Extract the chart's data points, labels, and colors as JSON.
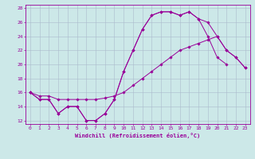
{
  "xlabel": "Windchill (Refroidissement éolien,°C)",
  "color": "#990099",
  "bg_color": "#cce8e8",
  "grid_color": "#aabbcc",
  "xlim": [
    -0.5,
    23.5
  ],
  "ylim": [
    11.5,
    28.5
  ],
  "yticks": [
    12,
    14,
    16,
    18,
    20,
    22,
    24,
    26,
    28
  ],
  "xticks": [
    0,
    1,
    2,
    3,
    4,
    5,
    6,
    7,
    8,
    9,
    10,
    11,
    12,
    13,
    14,
    15,
    16,
    17,
    18,
    19,
    20,
    21,
    22,
    23
  ],
  "series_a_x": [
    0,
    1,
    2,
    3,
    4,
    5,
    6,
    7,
    8,
    9,
    10,
    11,
    12,
    13,
    14,
    15,
    16,
    17,
    18,
    19,
    20,
    21
  ],
  "series_a_y": [
    16,
    15,
    15,
    13,
    14,
    14,
    12,
    12,
    13,
    15,
    19,
    22,
    25,
    27,
    27.5,
    27.5,
    27,
    27.5,
    26.5,
    24,
    21,
    20
  ],
  "series_b_x": [
    0,
    1,
    2,
    3,
    4,
    5,
    6,
    7,
    8,
    9,
    10,
    11,
    12,
    13,
    14,
    15,
    16,
    17,
    18,
    19,
    20,
    21,
    22,
    23
  ],
  "series_b_y": [
    16,
    15.5,
    15.5,
    15,
    15,
    15,
    15,
    15,
    15.2,
    15.5,
    16,
    17,
    18,
    19,
    20,
    21,
    22,
    22.5,
    23,
    23.5,
    24,
    22,
    21,
    19.5
  ],
  "series_c_x": [
    0,
    1,
    2,
    3,
    4,
    5,
    6,
    7,
    8,
    9,
    10,
    11,
    12,
    13,
    14,
    15,
    16,
    17,
    18,
    19,
    20,
    21,
    22,
    23
  ],
  "series_c_y": [
    16,
    15,
    15,
    13,
    14,
    14,
    12,
    12,
    13,
    15,
    19,
    22,
    25,
    27,
    27.5,
    27.5,
    27,
    27.5,
    26.5,
    26,
    24,
    22,
    21,
    19.5
  ]
}
